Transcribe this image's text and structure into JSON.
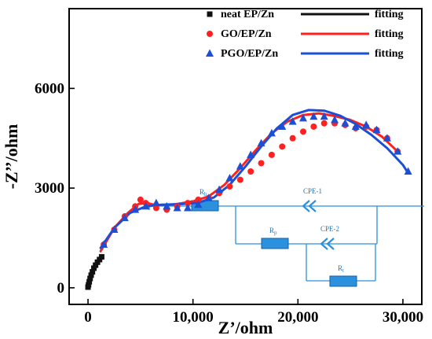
{
  "chart_data": {
    "type": "scatter",
    "title": "",
    "xlabel": "Z’/ohm",
    "ylabel": "-Z’’/ohm",
    "xlim": [
      -1800,
      31800
    ],
    "ylim": [
      -500,
      8400
    ],
    "xticks": [
      0,
      10000,
      20000,
      30000
    ],
    "xtick_labels": [
      "0",
      "10,000",
      "20,000",
      "30,000"
    ],
    "yticks": [
      0,
      3000,
      6000
    ],
    "ytick_labels": [
      "0",
      "3000",
      "6000"
    ],
    "grid": false,
    "legend_position": "top-right",
    "colors": {
      "neat": "#111111",
      "go": "#ff2020",
      "pgo": "#1a4fd6",
      "circuit": "#2b90dd"
    },
    "series": [
      {
        "name": "neat EP/Zn",
        "marker": "square",
        "fit_label": "fitting",
        "x": [
          0,
          50,
          120,
          200,
          300,
          420,
          560,
          720,
          900,
          1100,
          1300
        ],
        "y": [
          20,
          90,
          180,
          280,
          380,
          480,
          590,
          680,
          770,
          850,
          930
        ]
      },
      {
        "name": "GO/EP/Zn",
        "marker": "circle",
        "fit_label": "fitting",
        "x": [
          1500,
          2500,
          3500,
          4500,
          5000,
          5500,
          6500,
          7500,
          8500,
          9500,
          10500,
          11500,
          12500,
          13500,
          14500,
          15500,
          16500,
          17500,
          18500,
          19500,
          20500,
          21500,
          22500,
          23500,
          24500,
          25500,
          26500,
          27500,
          28500,
          29500
        ],
        "y": [
          1300,
          1750,
          2150,
          2450,
          2650,
          2550,
          2400,
          2350,
          2450,
          2550,
          2650,
          2700,
          2850,
          3050,
          3250,
          3500,
          3750,
          4000,
          4250,
          4500,
          4700,
          4850,
          4950,
          4950,
          4900,
          4800,
          4850,
          4750,
          4500,
          4100
        ],
        "fit": {
          "x": [
            1200,
            2500,
            3800,
            4800,
            5500,
            6500,
            8000,
            10000,
            11500,
            13000,
            14500,
            16000,
            17500,
            19000,
            20500,
            22000,
            23500,
            25000,
            26500,
            28000,
            29500
          ],
          "y": [
            1100,
            1800,
            2250,
            2520,
            2550,
            2490,
            2500,
            2600,
            2750,
            3100,
            3600,
            4150,
            4650,
            5000,
            5200,
            5250,
            5170,
            5050,
            4850,
            4550,
            4100
          ]
        }
      },
      {
        "name": "PGO/EP/Zn",
        "marker": "triangle",
        "fit_label": "fitting",
        "x": [
          1500,
          2500,
          3500,
          4500,
          5500,
          6500,
          7500,
          8500,
          9500,
          10500,
          11500,
          12500,
          13500,
          14500,
          15500,
          16500,
          17500,
          18500,
          19500,
          20500,
          21500,
          22500,
          23500,
          24500,
          25500,
          26500,
          27500,
          28500,
          29500,
          30500
        ],
        "y": [
          1300,
          1750,
          2100,
          2350,
          2450,
          2550,
          2450,
          2400,
          2400,
          2500,
          2700,
          2950,
          3300,
          3650,
          4000,
          4350,
          4650,
          4850,
          5000,
          5100,
          5150,
          5150,
          5050,
          4950,
          4850,
          4900,
          4750,
          4500,
          4100,
          3500
        ],
        "fit": {
          "x": [
            1200,
            2500,
            4000,
            5500,
            7000,
            9000,
            10500,
            12000,
            13500,
            15000,
            16500,
            18000,
            19500,
            21000,
            22500,
            24000,
            25500,
            27000,
            28500,
            30000,
            30500
          ],
          "y": [
            1200,
            1800,
            2250,
            2450,
            2500,
            2520,
            2560,
            2720,
            3100,
            3650,
            4250,
            4800,
            5200,
            5350,
            5330,
            5180,
            4930,
            4600,
            4200,
            3700,
            3450
          ]
        }
      }
    ],
    "inset": {
      "type": "equivalent-circuit",
      "components": [
        "R_b",
        "CPE-1",
        "R_p",
        "CPE-2",
        "R_t"
      ]
    }
  }
}
